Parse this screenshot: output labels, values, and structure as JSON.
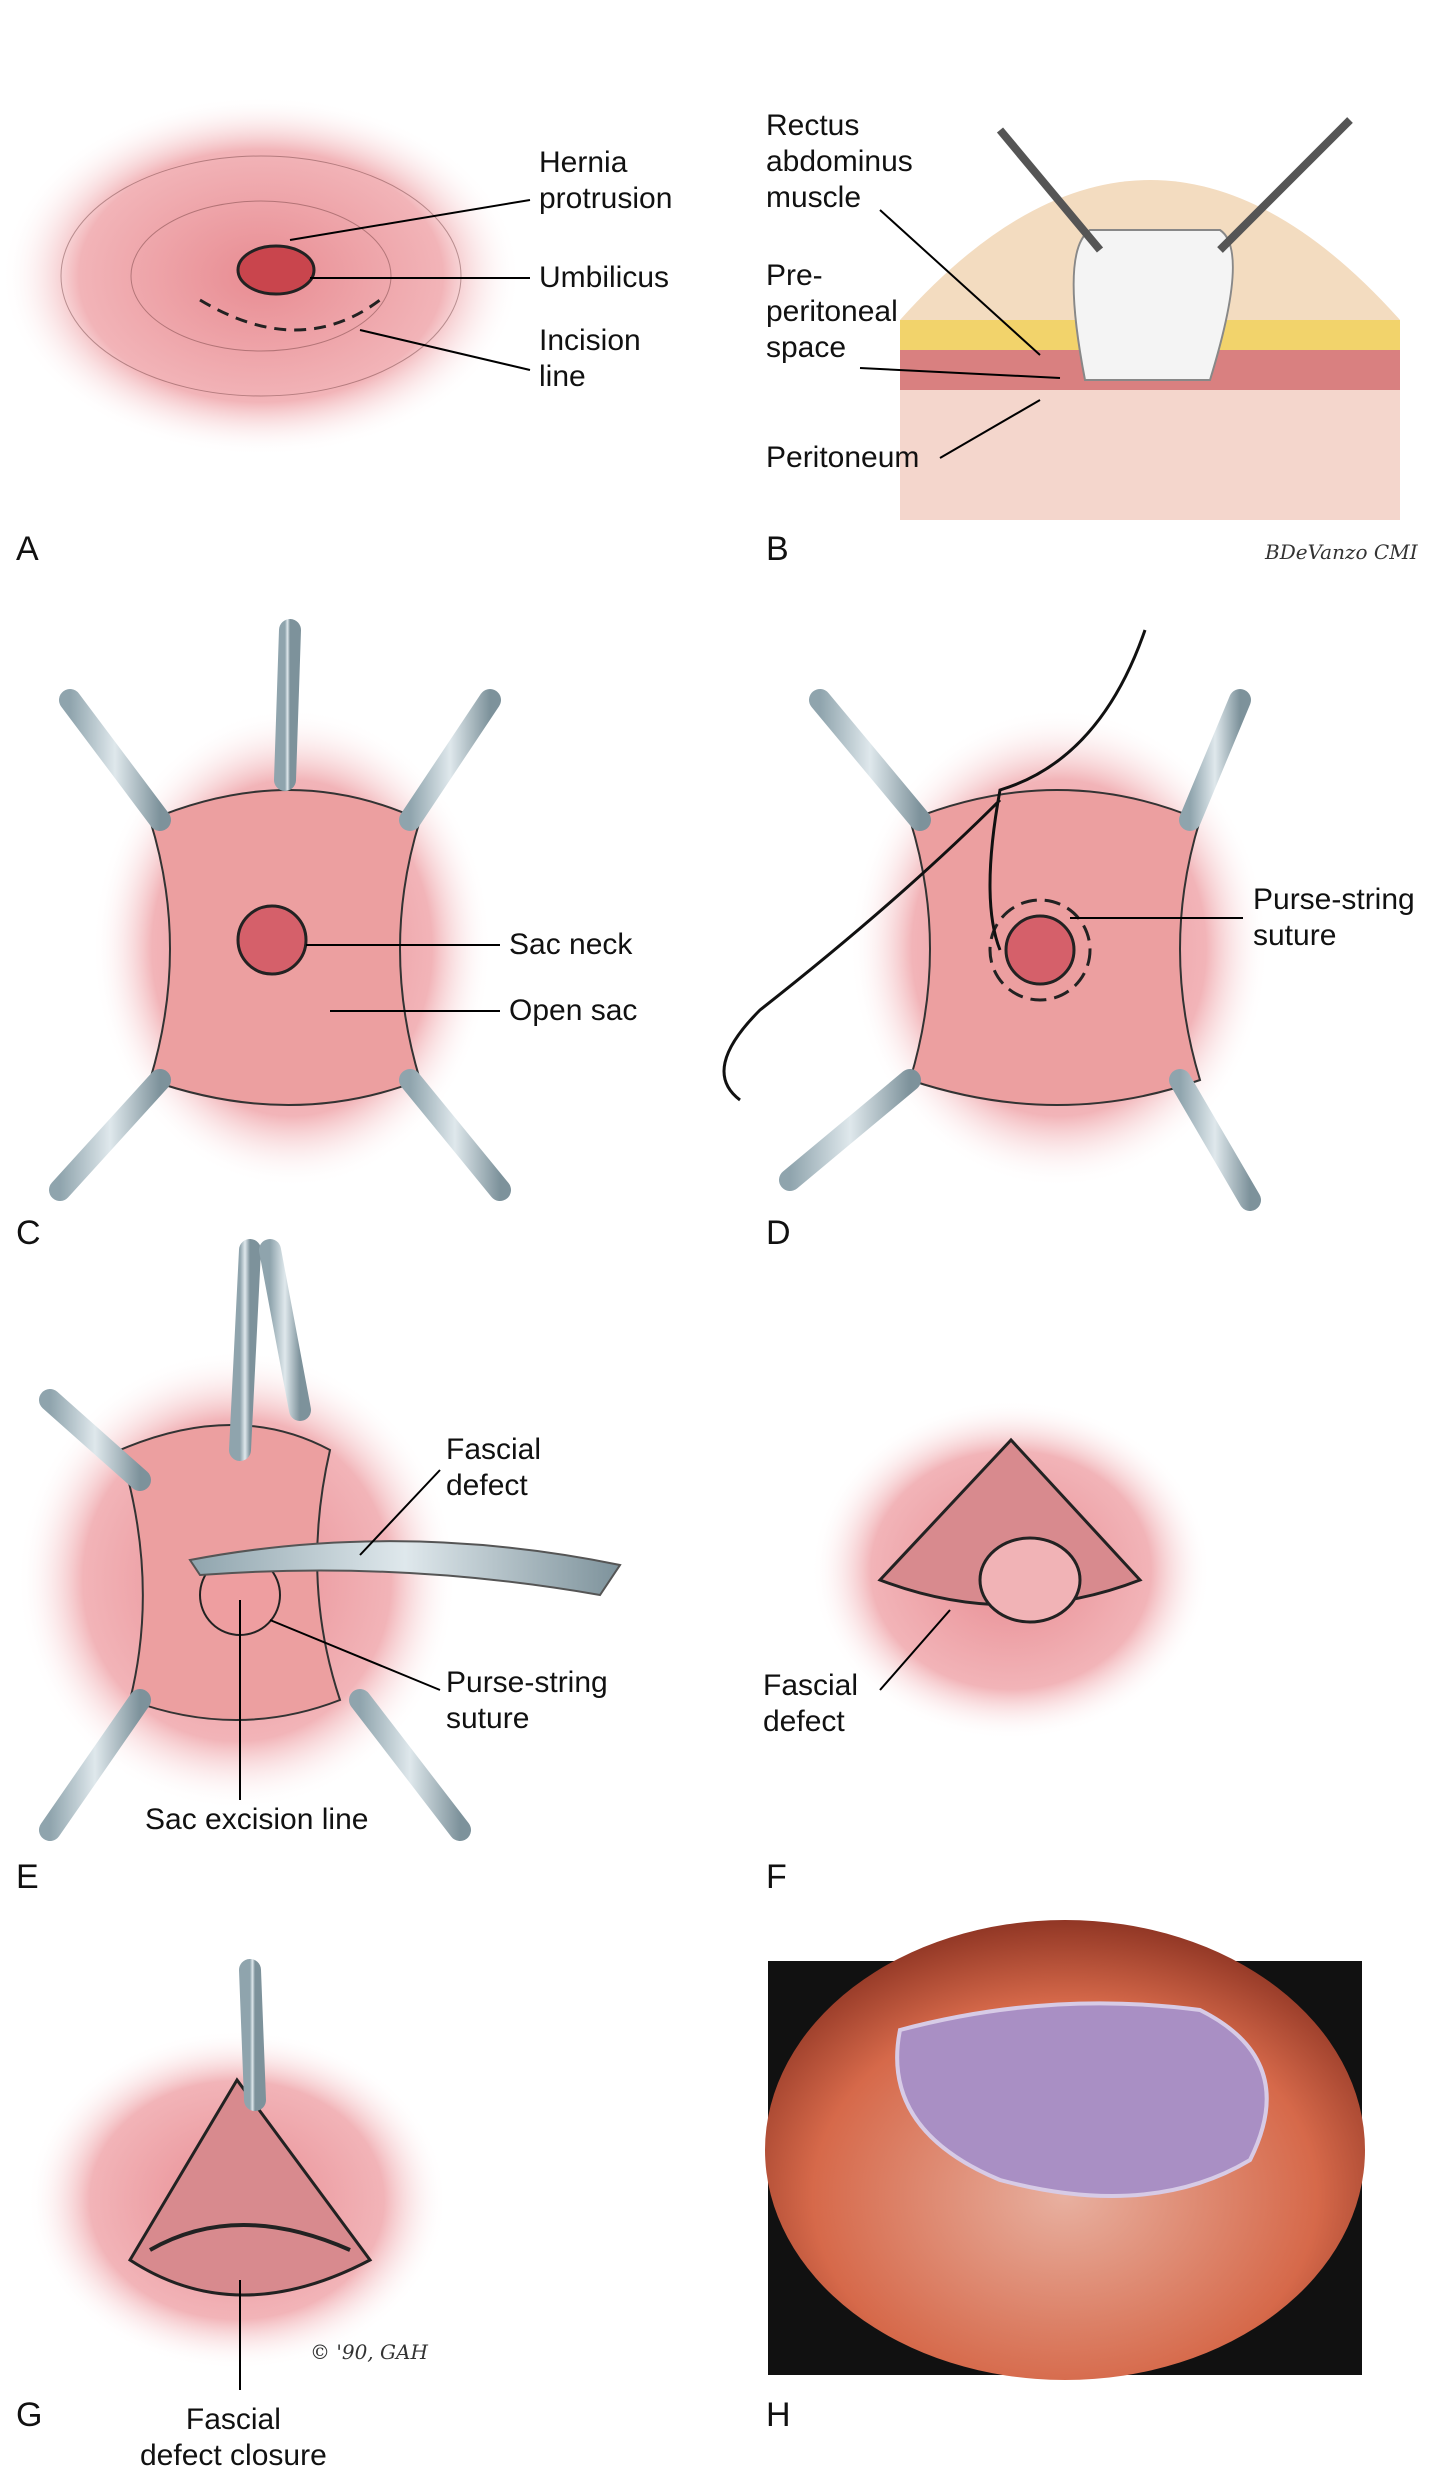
{
  "figure": {
    "panels": [
      {
        "letter": "A",
        "labels": [
          "Hernia\nprotrusion",
          "Umbilicus",
          "Incision\nline"
        ]
      },
      {
        "letter": "B",
        "labels": [
          "Rectus\nabdominus\nmuscle",
          "Pre-\nperitoneal\nspace",
          "Peritoneum"
        ]
      },
      {
        "letter": "C",
        "labels": [
          "Sac neck",
          "Open sac"
        ]
      },
      {
        "letter": "D",
        "labels": [
          "Purse-string\nsuture"
        ]
      },
      {
        "letter": "E",
        "labels": [
          "Fascial\ndefect",
          "Purse-string\nsuture",
          "Sac excision line"
        ]
      },
      {
        "letter": "F",
        "labels": [
          "Fascial\ndefect"
        ]
      },
      {
        "letter": "G",
        "labels": [
          "Fascial\ndefect closure"
        ]
      },
      {
        "letter": "H",
        "labels": []
      }
    ],
    "signatures": [
      "BDeVanzo CMI",
      "© '90, GAH"
    ]
  }
}
